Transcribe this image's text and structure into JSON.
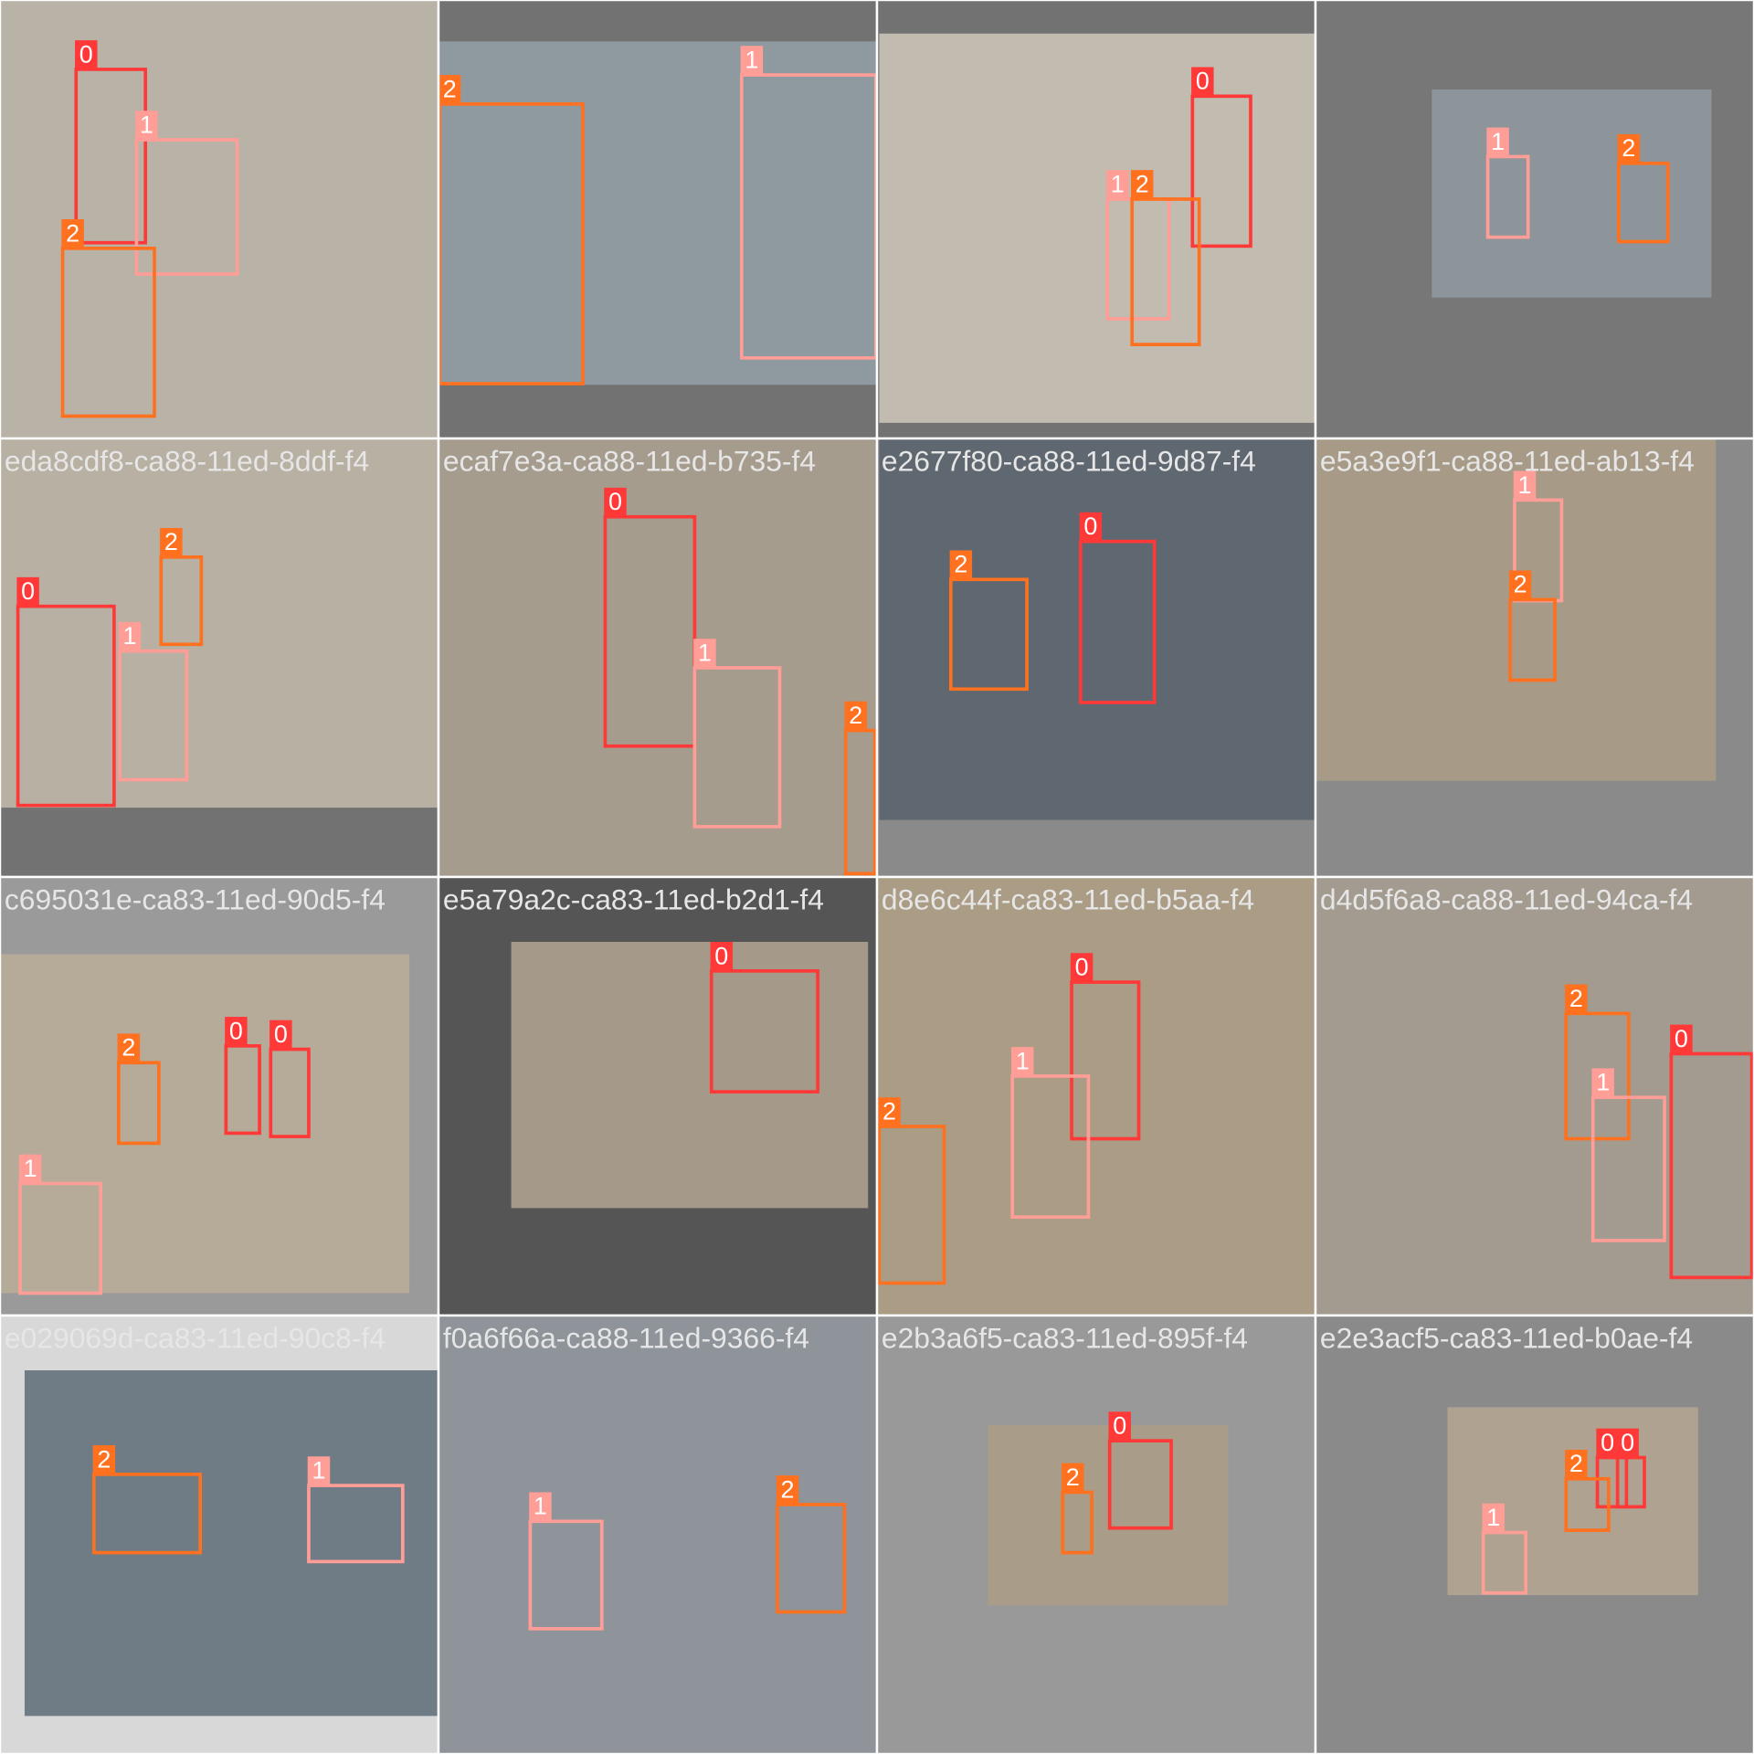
{
  "tiles": [
    {
      "labels": [
        "0",
        "1",
        "2"
      ]
    },
    {
      "labels": [
        "2",
        "1"
      ]
    },
    {
      "labels": [
        "0",
        "1",
        "2"
      ]
    },
    {
      "labels": [
        "1",
        "2"
      ]
    },
    {
      "caption": "eda8cdf8-ca88-11ed-8ddf-f4",
      "labels": [
        "2",
        "0",
        "1"
      ]
    },
    {
      "caption": "ecaf7e3a-ca88-11ed-b735-f4",
      "labels": [
        "0",
        "1",
        "2"
      ]
    },
    {
      "caption": "e2677f80-ca88-11ed-9d87-f4",
      "labels": [
        "2",
        "0"
      ]
    },
    {
      "caption": "e5a3e9f1-ca88-11ed-ab13-f4",
      "labels": [
        "1",
        "2"
      ]
    },
    {
      "caption": "c695031e-ca83-11ed-90d5-f4",
      "labels": [
        "2",
        "0",
        "0",
        "1"
      ]
    },
    {
      "caption": "e5a79a2c-ca83-11ed-b2d1-f4",
      "labels": [
        "0"
      ]
    },
    {
      "caption": "d8e6c44f-ca83-11ed-b5aa-f4",
      "labels": [
        "0",
        "1",
        "2"
      ]
    },
    {
      "caption": "d4d5f6a8-ca88-11ed-94ca-f4",
      "labels": [
        "2",
        "1",
        "0"
      ]
    },
    {
      "caption": "e029069d-ca83-11ed-90c8-f4",
      "labels": [
        "2",
        "1"
      ]
    },
    {
      "caption": "f0a6f66a-ca88-11ed-9366-f4",
      "labels": [
        "1",
        "2"
      ]
    },
    {
      "caption": "e2b3a6f5-ca83-11ed-895f-f4",
      "labels": [
        "0",
        "2"
      ]
    },
    {
      "caption": "e2e3acf5-ca83-11ed-b0ae-f4",
      "labels": [
        "0",
        "0",
        "2",
        "1"
      ]
    }
  ]
}
